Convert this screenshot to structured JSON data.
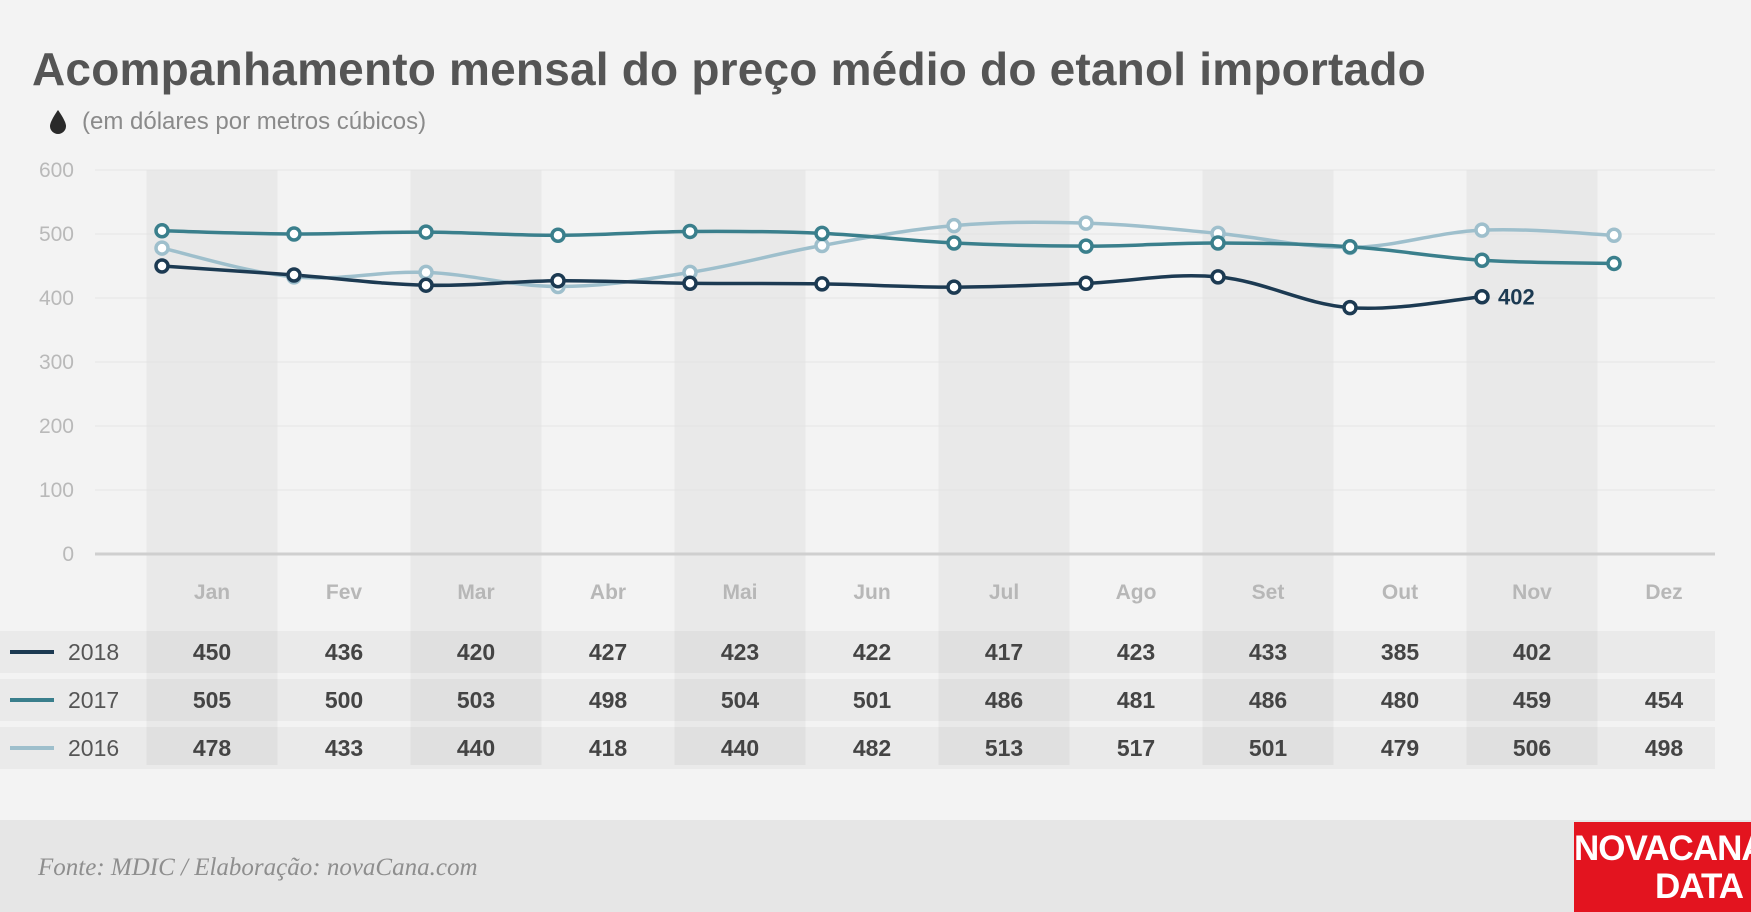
{
  "header": {
    "title": "Acompanhamento mensal do preço médio do etanol importado",
    "subtitle": "(em dólares por metros cúbicos)"
  },
  "footer": {
    "source": "Fonte: MDIC / Elaboração: novaCana.com",
    "logo_line1": "NOVACANA",
    "logo_line2": "DATA"
  },
  "colors": {
    "2018": "#1c3a52",
    "2017": "#3a7f8c",
    "2016": "#9ebfcc",
    "brand_red": "#e3141f"
  },
  "chart_data": {
    "type": "line",
    "title": "Acompanhamento mensal do preço médio do etanol importado",
    "subtitle": "(em dólares por metros cúbicos)",
    "categories": [
      "Jan",
      "Fev",
      "Mar",
      "Abr",
      "Mai",
      "Jun",
      "Jul",
      "Ago",
      "Set",
      "Out",
      "Nov",
      "Dez"
    ],
    "y_ticks": [
      "0",
      "100",
      "200",
      "300",
      "400",
      "500",
      "600"
    ],
    "ylim": [
      0,
      600
    ],
    "grid": true,
    "legend": "table-below",
    "end_label": "402",
    "series": [
      {
        "name": "2018",
        "values": [
          450,
          436,
          420,
          427,
          423,
          422,
          417,
          423,
          433,
          385,
          402,
          null
        ]
      },
      {
        "name": "2017",
        "values": [
          505,
          500,
          503,
          498,
          504,
          501,
          486,
          481,
          486,
          480,
          459,
          454
        ]
      },
      {
        "name": "2016",
        "values": [
          478,
          433,
          440,
          418,
          440,
          482,
          513,
          517,
          501,
          479,
          506,
          498
        ]
      }
    ]
  }
}
